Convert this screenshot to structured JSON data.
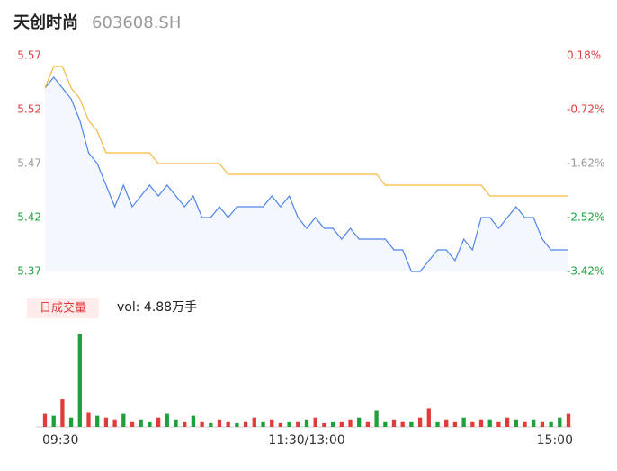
{
  "header": {
    "name": "天创时尚",
    "code": "603608.SH"
  },
  "chart_data": [
    {
      "type": "line",
      "x": [
        0,
        4,
        8,
        12,
        16,
        20,
        24,
        28,
        32,
        36,
        40,
        44,
        48,
        52,
        56,
        60,
        64,
        68,
        72,
        76,
        80,
        84,
        88,
        92,
        96,
        100,
        104,
        108,
        112,
        116,
        120,
        124,
        128,
        132,
        136,
        140,
        144,
        148,
        152,
        156,
        160,
        164,
        168,
        172,
        176,
        180,
        184,
        188,
        192,
        196,
        200,
        204,
        208,
        212,
        216,
        220,
        224,
        228,
        232,
        236,
        240
      ],
      "xlim": [
        0,
        240
      ],
      "series": [
        {
          "color": "#4e85e8",
          "values": [
            5.54,
            5.55,
            5.54,
            5.53,
            5.51,
            5.48,
            5.47,
            5.45,
            5.43,
            5.45,
            5.43,
            5.44,
            5.45,
            5.44,
            5.45,
            5.44,
            5.43,
            5.44,
            5.42,
            5.42,
            5.43,
            5.42,
            5.43,
            5.43,
            5.43,
            5.43,
            5.44,
            5.43,
            5.44,
            5.42,
            5.41,
            5.42,
            5.41,
            5.41,
            5.4,
            5.41,
            5.4,
            5.4,
            5.4,
            5.4,
            5.39,
            5.39,
            5.37,
            5.37,
            5.38,
            5.39,
            5.39,
            5.38,
            5.4,
            5.39,
            5.42,
            5.42,
            5.41,
            5.42,
            5.43,
            5.42,
            5.42,
            5.4,
            5.39,
            5.39,
            5.39
          ]
        },
        {
          "color": "#f5b942",
          "values": [
            5.54,
            5.56,
            5.56,
            5.54,
            5.53,
            5.51,
            5.5,
            5.48,
            5.48,
            5.48,
            5.48,
            5.48,
            5.48,
            5.47,
            5.47,
            5.47,
            5.47,
            5.47,
            5.47,
            5.47,
            5.47,
            5.46,
            5.46,
            5.46,
            5.46,
            5.46,
            5.46,
            5.46,
            5.46,
            5.46,
            5.46,
            5.46,
            5.46,
            5.46,
            5.46,
            5.46,
            5.46,
            5.46,
            5.46,
            5.45,
            5.45,
            5.45,
            5.45,
            5.45,
            5.45,
            5.45,
            5.45,
            5.45,
            5.45,
            5.45,
            5.45,
            5.44,
            5.44,
            5.44,
            5.44,
            5.44,
            5.44,
            5.44,
            5.44,
            5.44,
            5.44
          ]
        }
      ],
      "ylim": [
        5.37,
        5.57
      ],
      "yticks": [
        5.57,
        5.52,
        5.47,
        5.42,
        5.37
      ],
      "y2lim": [
        -3.42,
        0.18
      ],
      "y2ticks": [
        {
          "value": 0.18,
          "label": "0.18%"
        },
        {
          "value": -0.72,
          "label": "-0.72%"
        },
        {
          "value": -1.62,
          "label": "-1.62%"
        },
        {
          "value": -2.52,
          "label": "-2.52%"
        },
        {
          "value": -3.42,
          "label": "-3.42%"
        }
      ]
    },
    {
      "type": "bar",
      "label": "日成交量",
      "summary": "vol: 4.88万手",
      "x": [
        0,
        4,
        8,
        12,
        16,
        20,
        24,
        28,
        32,
        36,
        40,
        44,
        48,
        52,
        56,
        60,
        64,
        68,
        72,
        76,
        80,
        84,
        88,
        92,
        96,
        100,
        104,
        108,
        112,
        116,
        120,
        124,
        128,
        132,
        136,
        140,
        144,
        148,
        152,
        156,
        160,
        164,
        168,
        172,
        176,
        180,
        184,
        188,
        192,
        196,
        200,
        204,
        208,
        212,
        216,
        220,
        224,
        228,
        232,
        236,
        240
      ],
      "xlim": [
        0,
        240
      ],
      "values": [
        350,
        300,
        750,
        250,
        2500,
        400,
        300,
        250,
        200,
        350,
        150,
        200,
        150,
        250,
        350,
        200,
        150,
        300,
        150,
        100,
        200,
        150,
        100,
        150,
        250,
        150,
        200,
        100,
        150,
        150,
        200,
        250,
        100,
        150,
        150,
        200,
        250,
        150,
        450,
        150,
        200,
        150,
        150,
        250,
        500,
        150,
        200,
        150,
        250,
        150,
        200,
        200,
        150,
        250,
        200,
        150,
        200,
        150,
        150,
        250,
        350
      ],
      "colors": [
        "#e03c3c",
        "#1ea03c",
        "#e03c3c",
        "#1ea03c",
        "#1ea03c",
        "#e03c3c",
        "#1ea03c",
        "#e03c3c",
        "#e03c3c",
        "#1ea03c",
        "#e03c3c",
        "#1ea03c",
        "#1ea03c",
        "#e03c3c",
        "#1ea03c",
        "#1ea03c",
        "#e03c3c",
        "#1ea03c",
        "#e03c3c",
        "#1ea03c",
        "#e03c3c",
        "#e03c3c",
        "#1ea03c",
        "#e03c3c",
        "#e03c3c",
        "#1ea03c",
        "#e03c3c",
        "#e03c3c",
        "#1ea03c",
        "#e03c3c",
        "#1ea03c",
        "#e03c3c",
        "#e03c3c",
        "#1ea03c",
        "#e03c3c",
        "#e03c3c",
        "#1ea03c",
        "#e03c3c",
        "#1ea03c",
        "#1ea03c",
        "#e03c3c",
        "#e03c3c",
        "#1ea03c",
        "#e03c3c",
        "#e03c3c",
        "#1ea03c",
        "#e03c3c",
        "#e03c3c",
        "#1ea03c",
        "#e03c3c",
        "#e03c3c",
        "#1ea03c",
        "#e03c3c",
        "#e03c3c",
        "#1ea03c",
        "#e03c3c",
        "#1ea03c",
        "#e03c3c",
        "#1ea03c",
        "#1ea03c",
        "#e03c3c"
      ],
      "ylim": [
        0,
        2500
      ],
      "xticks": [
        {
          "value": 0,
          "label": "09:30"
        },
        {
          "value": 120,
          "label": "11:30/13:00"
        },
        {
          "value": 240,
          "label": "15:00"
        }
      ]
    }
  ]
}
